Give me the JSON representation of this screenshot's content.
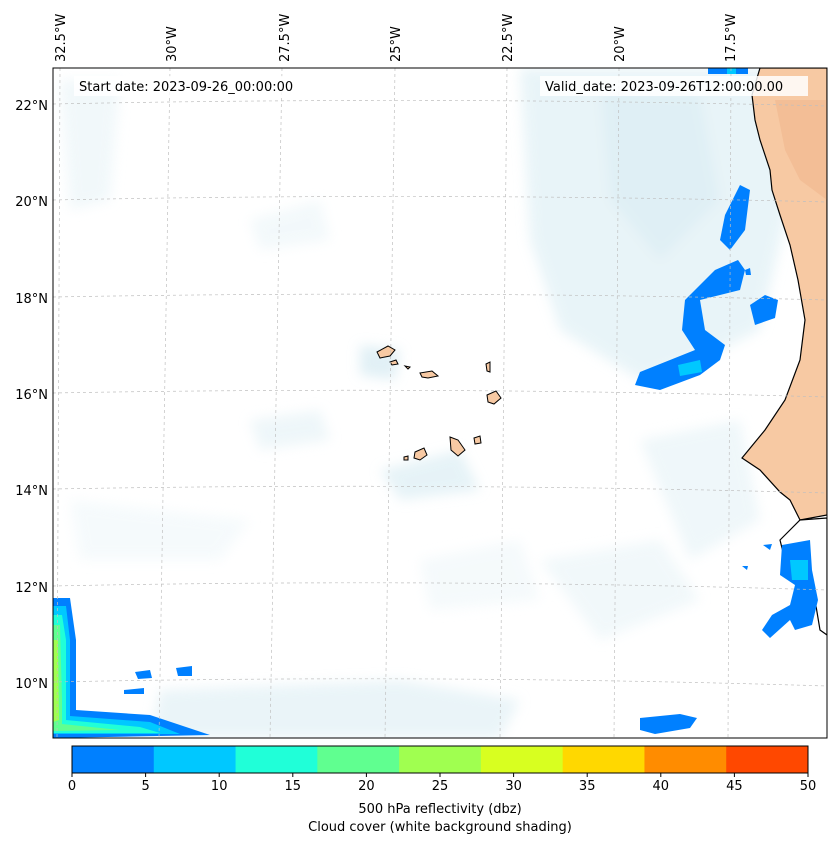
{
  "map": {
    "start_date": "Start date: 2023-09-26_00:00:00",
    "valid_date": "Valid_date: 2023-09-26T12:00:00.00",
    "lon_labels": [
      "32.5°W",
      "30°W",
      "27.5°W",
      "25°W",
      "22.5°W",
      "20°W",
      "17.5°W"
    ],
    "lat_labels": [
      "22°N",
      "20°N",
      "18°N",
      "16°N",
      "14°N",
      "12°N",
      "10°N"
    ]
  },
  "colorbar": {
    "ticks": [
      "0",
      "5",
      "10",
      "15",
      "20",
      "25",
      "30",
      "35",
      "40",
      "45",
      "50"
    ],
    "colors": [
      "#0080ff",
      "#00c8ff",
      "#20ffd8",
      "#60ff90",
      "#a0ff50",
      "#d8ff20",
      "#ffd800",
      "#ff8c00",
      "#ff4800"
    ],
    "label_line1": "500 hPa reflectivity (dbz)",
    "label_line2": "Cloud cover (white background shading)"
  },
  "colors": {
    "land": "#f7c9a3",
    "reflectivity_low": "#0080ff",
    "cloud": "#d7ecf3"
  }
}
